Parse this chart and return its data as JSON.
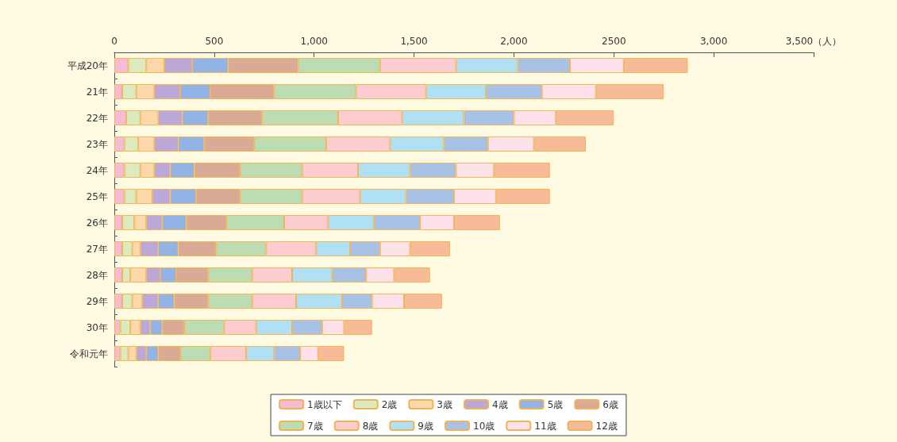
{
  "chart_data": {
    "type": "bar",
    "orientation": "horizontal",
    "stacked": true,
    "grid": false,
    "legend": "bottom",
    "categories": [
      "平成20年",
      "21年",
      "22年",
      "23年",
      "24年",
      "25年",
      "26年",
      "27年",
      "28年",
      "29年",
      "30年",
      "令和元年"
    ],
    "xlim": [
      0,
      3500
    ],
    "xticks": [
      0,
      500,
      {
        "value": 1000,
        "label": "1,000"
      },
      {
        "value": 1500,
        "label": "1,500"
      },
      {
        "value": 2000,
        "label": "2,000"
      },
      {
        "value": 2500,
        "label": "2500"
      },
      {
        "value": 3000,
        "label": "3,000"
      },
      {
        "value": 3500,
        "label": "3,500（人）"
      }
    ],
    "series": [
      {
        "name": "1歳以下",
        "color": "#f6bcd4",
        "values": [
          70,
          40,
          60,
          50,
          50,
          50,
          40,
          40,
          40,
          40,
          30,
          30
        ]
      },
      {
        "name": "2歳",
        "color": "#dcebbd",
        "values": [
          90,
          70,
          70,
          70,
          80,
          60,
          60,
          50,
          40,
          50,
          50,
          40
        ]
      },
      {
        "name": "3歳",
        "color": "#fcd8aa",
        "values": [
          90,
          90,
          90,
          80,
          70,
          80,
          60,
          40,
          80,
          50,
          50,
          40
        ]
      },
      {
        "name": "4歳",
        "color": "#bba8d8",
        "values": [
          140,
          130,
          120,
          120,
          80,
          90,
          80,
          90,
          70,
          80,
          50,
          50
        ]
      },
      {
        "name": "5歳",
        "color": "#92b3e6",
        "values": [
          180,
          150,
          130,
          130,
          120,
          130,
          120,
          100,
          80,
          80,
          60,
          60
        ]
      },
      {
        "name": "6歳",
        "color": "#d9ab96",
        "values": [
          350,
          320,
          270,
          250,
          230,
          220,
          200,
          190,
          160,
          170,
          110,
          110
        ]
      },
      {
        "name": "7歳",
        "color": "#bcdcb4",
        "values": [
          410,
          410,
          380,
          360,
          310,
          310,
          290,
          250,
          220,
          220,
          200,
          150
        ]
      },
      {
        "name": "8歳",
        "color": "#fccdd0",
        "values": [
          380,
          350,
          320,
          320,
          280,
          290,
          220,
          250,
          200,
          220,
          160,
          180
        ]
      },
      {
        "name": "9歳",
        "color": "#b0e0f4",
        "values": [
          310,
          300,
          310,
          270,
          260,
          230,
          230,
          170,
          200,
          230,
          180,
          140
        ]
      },
      {
        "name": "10歳",
        "color": "#a8c2e6",
        "values": [
          260,
          280,
          250,
          220,
          230,
          240,
          230,
          150,
          170,
          150,
          150,
          130
        ]
      },
      {
        "name": "11歳",
        "color": "#fde2ec",
        "values": [
          270,
          270,
          210,
          230,
          190,
          210,
          170,
          150,
          140,
          160,
          110,
          90
        ]
      },
      {
        "name": "12歳",
        "color": "#f8bb98",
        "values": [
          320,
          340,
          290,
          260,
          280,
          270,
          230,
          200,
          180,
          190,
          140,
          130
        ]
      }
    ]
  }
}
